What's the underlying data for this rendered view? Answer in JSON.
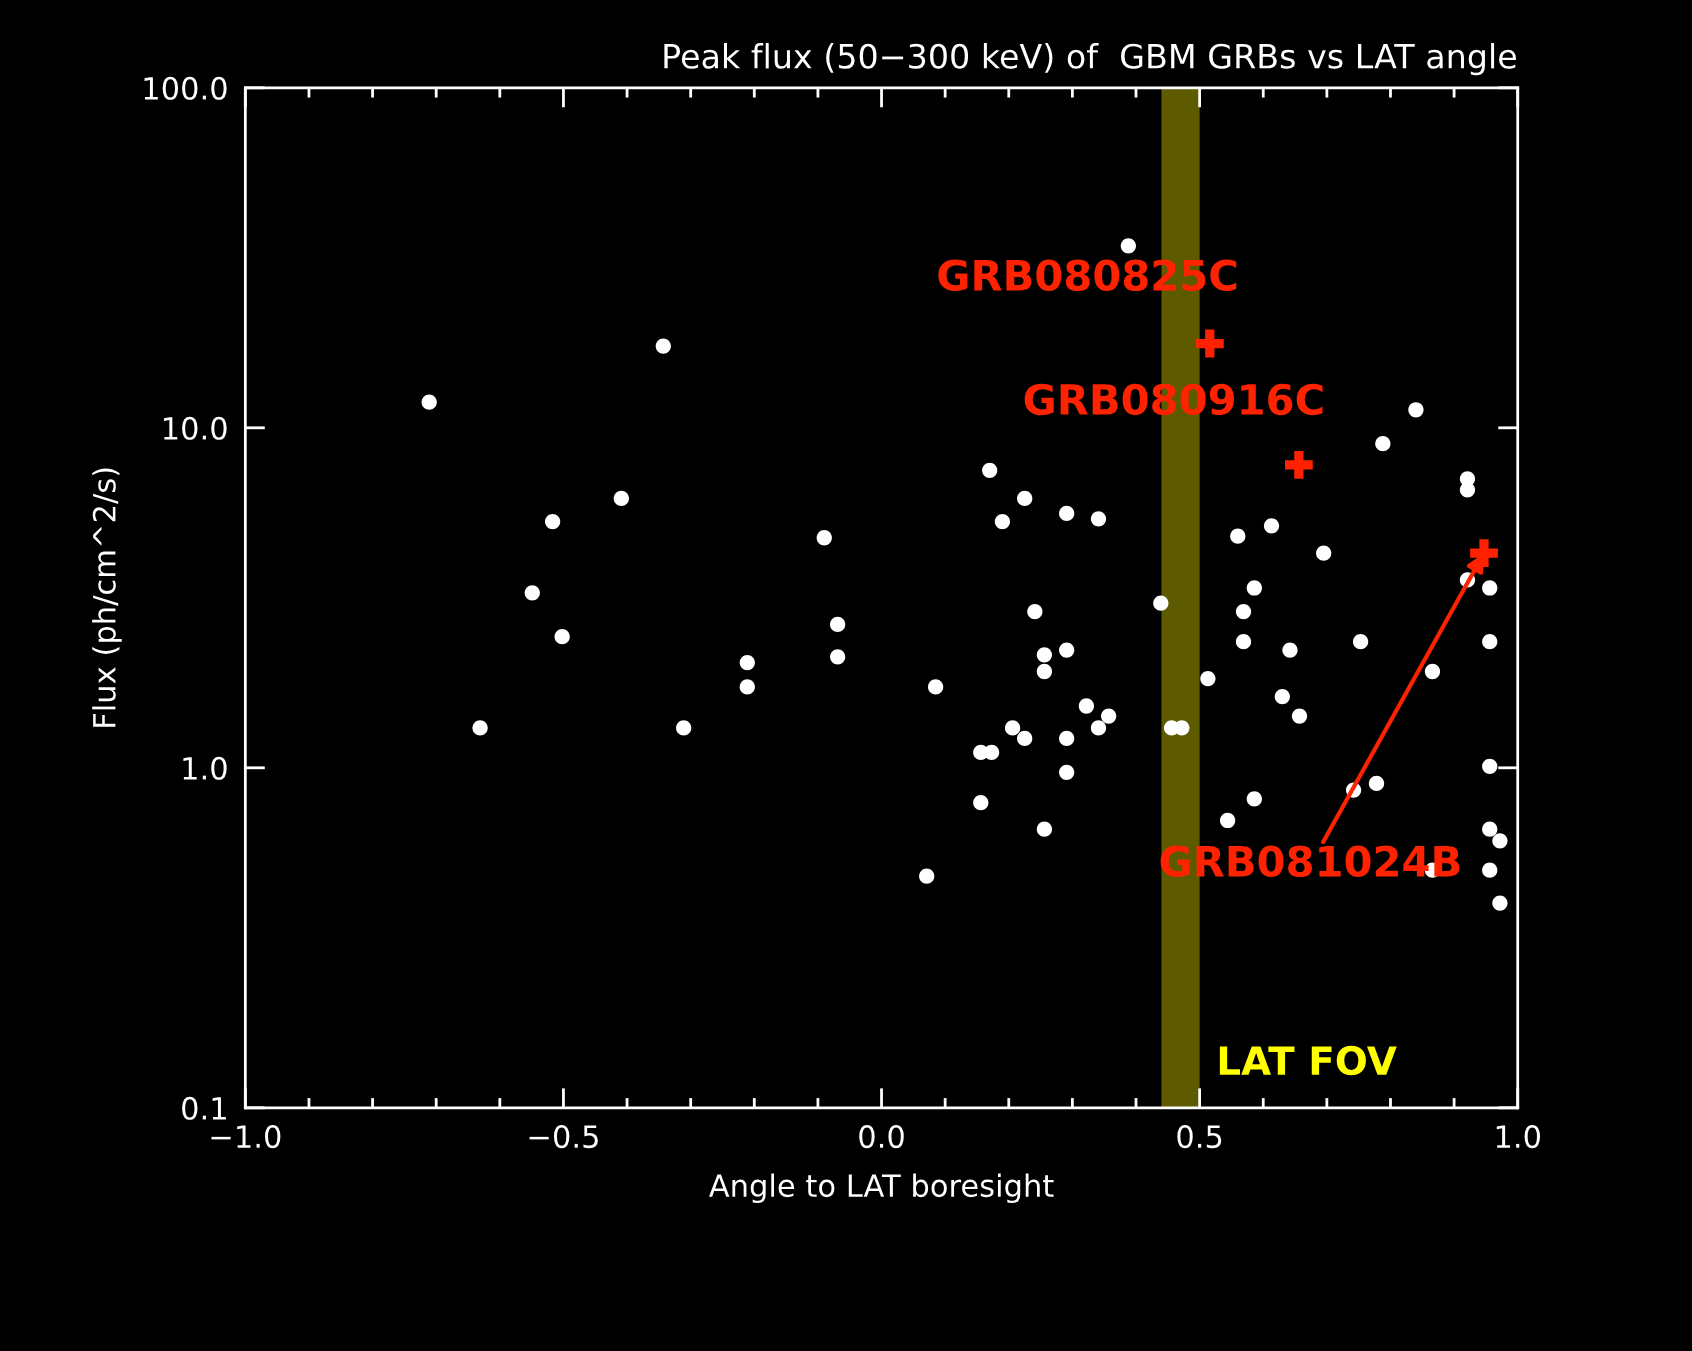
{
  "chart_data": {
    "type": "scatter",
    "title": "Peak flux (50−300 keV) of  GBM GRBs vs LAT angle",
    "xlabel": "Angle to LAT boresight",
    "ylabel": "Flux (ph/cm^2/s)",
    "log": "y",
    "xlim": [
      -1.0,
      1.0
    ],
    "ylim": [
      0.1,
      100.0
    ],
    "xticks": [
      {
        "value": -1.0,
        "label": "−1.0"
      },
      {
        "value": -0.5,
        "label": "−0.5"
      },
      {
        "value": 0.0,
        "label": "0.0"
      },
      {
        "value": 0.5,
        "label": "0.5"
      },
      {
        "value": 1.0,
        "label": "1.0"
      }
    ],
    "yticks": [
      {
        "value": 0.1,
        "label": "0.1"
      },
      {
        "value": 1.0,
        "label": "1.0"
      },
      {
        "value": 10.0,
        "label": "10.0"
      },
      {
        "value": 100.0,
        "label": "100.0"
      }
    ],
    "grid": false,
    "legend": false,
    "series": [
      {
        "color": "#ffffff",
        "marker": "circle",
        "x": [
          -0.711,
          -0.631,
          -0.549,
          -0.517,
          -0.502,
          -0.409,
          -0.343,
          -0.311,
          -0.211,
          -0.211,
          -0.09,
          -0.069,
          -0.069,
          0.071,
          0.085,
          0.156,
          0.173,
          0.156,
          0.17,
          0.19,
          0.206,
          0.225,
          0.225,
          0.241,
          0.256,
          0.256,
          0.256,
          0.291,
          0.291,
          0.291,
          0.291,
          0.322,
          0.341,
          0.341,
          0.357,
          0.388,
          0.439,
          0.456,
          0.472,
          0.513,
          0.544,
          0.56,
          0.569,
          0.569,
          0.586,
          0.586,
          0.613,
          0.63,
          0.642,
          0.657,
          0.695,
          0.742,
          0.753,
          0.778,
          0.788,
          0.84,
          0.866,
          0.866,
          0.921,
          0.921,
          0.921,
          0.956,
          0.956,
          0.956,
          0.956,
          0.956,
          0.972,
          0.972
        ],
        "values": [
          11.9,
          1.31,
          3.27,
          5.3,
          2.43,
          6.2,
          17.4,
          1.31,
          2.04,
          1.73,
          4.75,
          2.64,
          2.12,
          0.48,
          1.73,
          1.11,
          1.11,
          0.79,
          7.5,
          5.3,
          1.31,
          1.22,
          6.2,
          2.88,
          2.15,
          1.92,
          0.66,
          5.6,
          2.22,
          1.22,
          0.97,
          1.52,
          5.4,
          1.31,
          1.42,
          34.3,
          3.05,
          1.31,
          1.31,
          1.83,
          0.7,
          4.8,
          2.88,
          2.35,
          3.38,
          0.81,
          5.15,
          1.62,
          2.22,
          1.42,
          4.28,
          0.86,
          2.35,
          0.9,
          8.98,
          11.3,
          1.92,
          0.5,
          7.08,
          6.57,
          3.57,
          3.38,
          2.35,
          1.01,
          0.66,
          0.5,
          0.61,
          0.4
        ]
      },
      {
        "color": "#ff2200",
        "marker": "cross",
        "x": [
          0.516,
          0.656,
          0.947
        ],
        "values": [
          17.7,
          7.78,
          4.28
        ]
      }
    ],
    "bands": [
      {
        "axis": "x",
        "from": 0.44,
        "to": 0.5,
        "label": "LAT FOV",
        "color": "#5e5a00"
      }
    ],
    "annotations": [
      {
        "text": "GRB080825C",
        "x": 0.516,
        "y": 17.7
      },
      {
        "text": "GRB080916C",
        "x": 0.656,
        "y": 7.78
      },
      {
        "text": "GRB081024B",
        "x": 0.947,
        "y": 4.28
      }
    ]
  }
}
